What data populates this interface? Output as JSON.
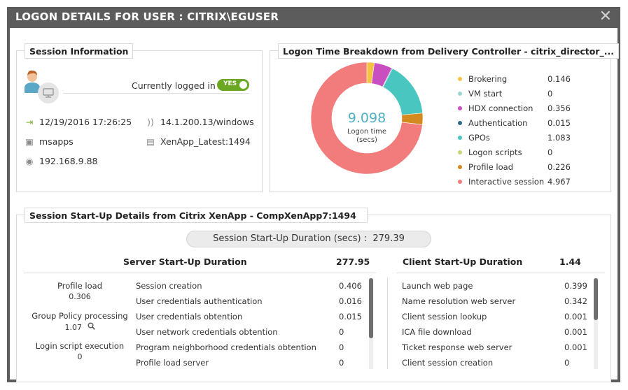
{
  "dialog": {
    "title": "LOGON DETAILS FOR USER : CITRIX\\EGUSER",
    "close_label": "✕"
  },
  "session_info": {
    "title": "Session Information",
    "logged_in_label": "Currently logged in",
    "toggle_label": "YES",
    "date_time": "12/19/2016 17:26:25",
    "address_path": "14.1.200.13/windows",
    "app_name": "msapps",
    "server": "XenApp_Latest:1494",
    "ip": "192.168.9.88"
  },
  "logon_breakdown": {
    "title": "Logon Time Breakdown from Delivery Controller - citrix_director_...",
    "center_value": "9.098",
    "center_label_1": "Logon time",
    "center_label_2": "(secs)"
  },
  "chart_data": {
    "type": "pie",
    "title": "Logon Time Breakdown from Delivery Controller - citrix_director_...",
    "total": 9.098,
    "categories": [
      "Brokering",
      "VM start",
      "HDX connection",
      "Authentication",
      "GPOs",
      "Logon scripts",
      "Profile load",
      "Interactive session"
    ],
    "values": [
      0.146,
      0,
      0.356,
      0.015,
      1.083,
      0,
      0.226,
      4.967
    ],
    "value_labels": [
      "0.146",
      "0",
      "0.356",
      "0.015",
      "1.083",
      "0",
      "0.226",
      "4.967"
    ],
    "colors": [
      "#f6c244",
      "#9ed7d2",
      "#c94fc1",
      "#2f6e8a",
      "#49c6c0",
      "#c8d67a",
      "#d58a1f",
      "#f27c7c"
    ],
    "legend_position": "right"
  },
  "startup": {
    "title": "Session Start-Up Details from Citrix XenApp - CompXenApp7:1494",
    "duration_label": "Session Start-Up Duration (secs) :",
    "duration_value": "279.39",
    "server": {
      "heading": "Server Start-Up Duration",
      "total": "277.95",
      "side": [
        {
          "label": "Profile load",
          "value": "0.306"
        },
        {
          "label": "Group Policy processing",
          "value": "1.07"
        },
        {
          "label": "Login script execution",
          "value": "0"
        }
      ],
      "rows": [
        {
          "name": "Session creation",
          "value": "0.406"
        },
        {
          "name": "User credentials authentication",
          "value": "0.016"
        },
        {
          "name": "User credentials obtention",
          "value": "0.015"
        },
        {
          "name": "User network credentials obtention",
          "value": "0"
        },
        {
          "name": "Program neighborhood credentials obtention",
          "value": "0"
        },
        {
          "name": "Profile load server",
          "value": "0"
        }
      ]
    },
    "client": {
      "heading": "Client Start-Up Duration",
      "total": "1.44",
      "rows": [
        {
          "name": "Launch web page",
          "value": "0.399"
        },
        {
          "name": "Name resolution web server",
          "value": "0.342"
        },
        {
          "name": "Client session lookup",
          "value": "0.001"
        },
        {
          "name": "ICA file download",
          "value": "0.001"
        },
        {
          "name": "Ticket response web server",
          "value": "0.001"
        },
        {
          "name": "Client session creation",
          "value": "0"
        }
      ]
    }
  }
}
